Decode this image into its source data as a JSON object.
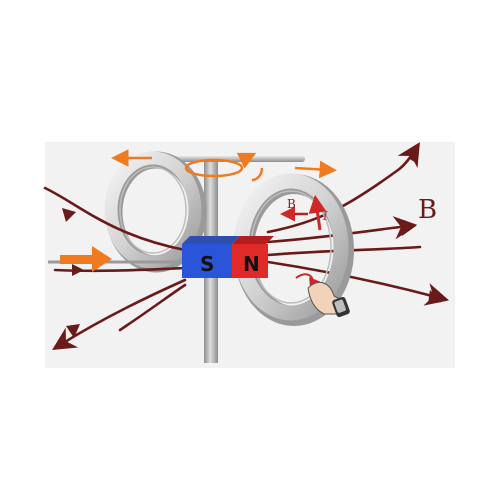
{
  "magnet": {
    "south_label": "S",
    "north_label": "N",
    "south_color": "#2a55d8",
    "north_color": "#e02a2a"
  },
  "labels": {
    "field_main": "B",
    "field_induced": "B",
    "current": "I"
  },
  "colors": {
    "background": "#ffffff",
    "panel": "#f2f2f2",
    "field_line": "#6b1a1a",
    "motion_arrow": "#f07a20",
    "ring_light": "#e3e3e3",
    "ring_dark": "#9d9d9d",
    "pole": "#a9a9a9"
  },
  "icons": [
    "push-arrow-icon",
    "rotation-arrow-icon",
    "right-hand-icon"
  ]
}
